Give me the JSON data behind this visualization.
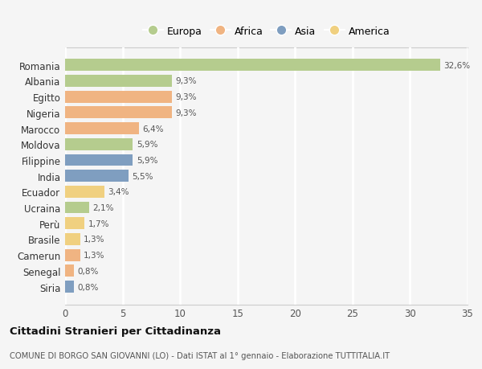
{
  "countries": [
    "Romania",
    "Albania",
    "Egitto",
    "Nigeria",
    "Marocco",
    "Moldova",
    "Filippine",
    "India",
    "Ecuador",
    "Ucraina",
    "Perù",
    "Brasile",
    "Camerun",
    "Senegal",
    "Siria"
  ],
  "values": [
    32.6,
    9.3,
    9.3,
    9.3,
    6.4,
    5.9,
    5.9,
    5.5,
    3.4,
    2.1,
    1.7,
    1.3,
    1.3,
    0.8,
    0.8
  ],
  "continents": [
    "Europa",
    "Europa",
    "Africa",
    "Africa",
    "Africa",
    "Europa",
    "Asia",
    "Asia",
    "America",
    "Europa",
    "America",
    "America",
    "Africa",
    "Africa",
    "Asia"
  ],
  "colors": {
    "Europa": "#b5cc8e",
    "Africa": "#f0b482",
    "Asia": "#7f9ec0",
    "America": "#f0d080"
  },
  "legend_order": [
    "Europa",
    "Africa",
    "Asia",
    "America"
  ],
  "title": "Cittadini Stranieri per Cittadinanza",
  "subtitle": "COMUNE DI BORGO SAN GIOVANNI (LO) - Dati ISTAT al 1° gennaio - Elaborazione TUTTITALIA.IT",
  "xlim": [
    0,
    35
  ],
  "xticks": [
    0,
    5,
    10,
    15,
    20,
    25,
    30,
    35
  ],
  "bg_color": "#f5f5f5",
  "grid_color": "#ffffff",
  "bar_height": 0.75
}
